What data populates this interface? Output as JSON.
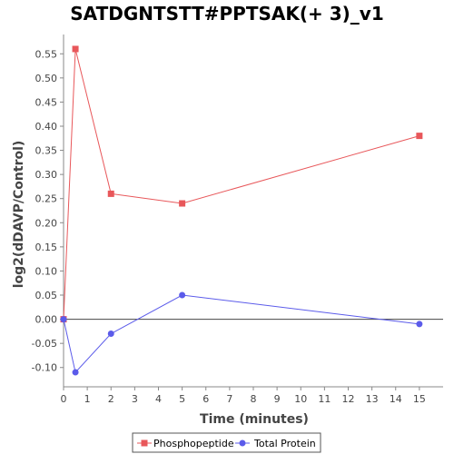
{
  "chart_data": {
    "type": "line",
    "title": "SATDGNTSTT#PPTSAK(+ 3)_v1",
    "xlabel": "Time (minutes)",
    "ylabel": "log2(dDAVP/Control)",
    "xlim": [
      0,
      16
    ],
    "ylim": [
      -0.14,
      0.59
    ],
    "xticks": [
      0,
      1,
      2,
      3,
      4,
      5,
      6,
      7,
      8,
      9,
      10,
      11,
      12,
      13,
      14,
      15
    ],
    "yticks": [
      -0.1,
      -0.05,
      0.0,
      0.05,
      0.1,
      0.15,
      0.2,
      0.25,
      0.3,
      0.35,
      0.4,
      0.45,
      0.5,
      0.55
    ],
    "ytick_labels": [
      "-0.10",
      "-0.05",
      "0.00",
      "0.05",
      "0.10",
      "0.15",
      "0.20",
      "0.25",
      "0.30",
      "0.35",
      "0.40",
      "0.45",
      "0.50",
      "0.55"
    ],
    "zero_line": true,
    "grid": false,
    "legend_position": "bottom",
    "series": [
      {
        "name": "Phosphopeptide",
        "color": "#e8575a",
        "marker": "square",
        "x": [
          0,
          0.5,
          2,
          5,
          15
        ],
        "y": [
          0.0,
          0.56,
          0.26,
          0.24,
          0.38
        ]
      },
      {
        "name": "Total Protein",
        "color": "#5b5bea",
        "marker": "circle",
        "x": [
          0,
          0.5,
          2,
          5,
          15
        ],
        "y": [
          0.0,
          -0.11,
          -0.03,
          0.05,
          -0.01
        ]
      }
    ]
  }
}
